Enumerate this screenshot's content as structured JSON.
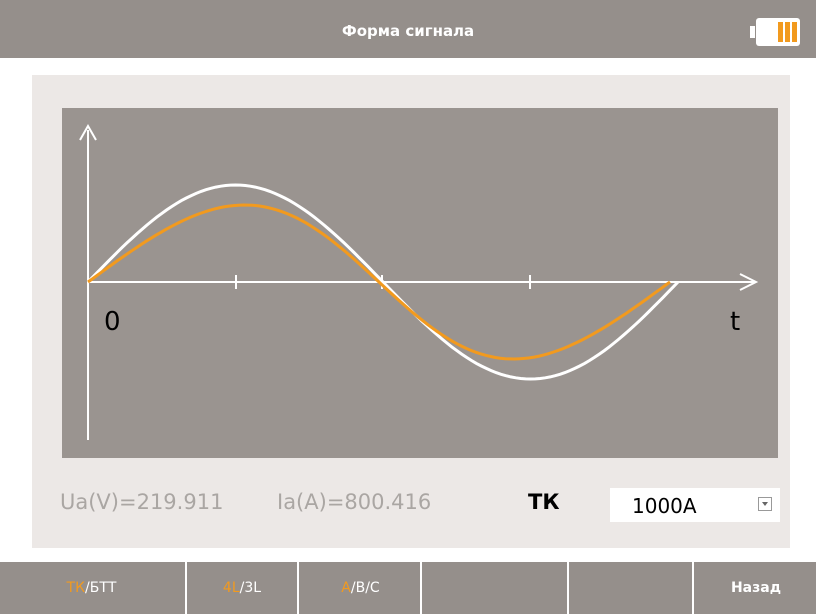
{
  "header": {
    "title": "Форма сигнала"
  },
  "plot": {
    "origin_label": "0",
    "axis_label": "t"
  },
  "readings": {
    "voltage": "Ua(V)=219.911",
    "current": "Ia(A)=800.416",
    "mode": "ТК",
    "range": "1000A"
  },
  "buttons": [
    {
      "highlight": "ТК",
      "rest": "/БТТ"
    },
    {
      "highlight": "4L",
      "rest": "/3L"
    },
    {
      "highlight": "А",
      "rest": "/В/С"
    },
    {
      "label": "Назад"
    }
  ]
}
